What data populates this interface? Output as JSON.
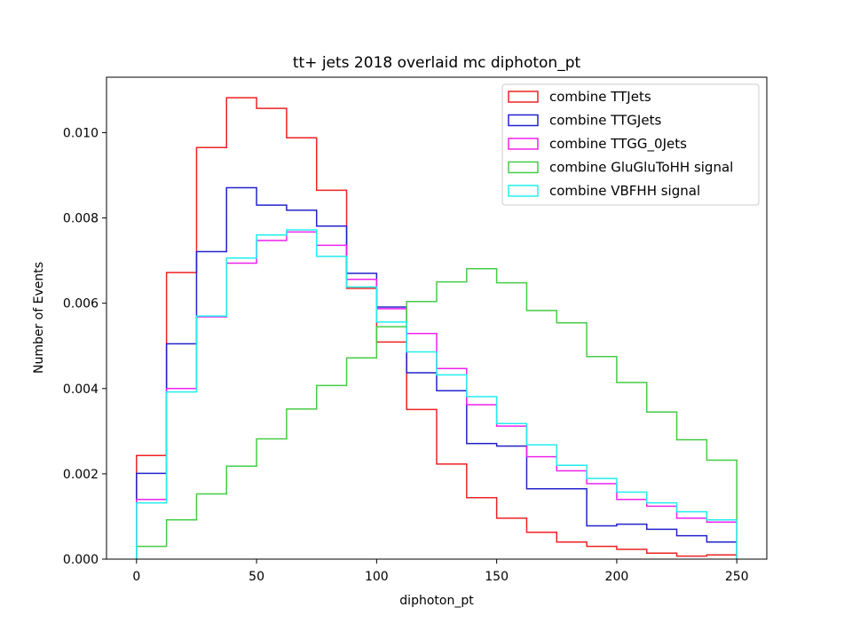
{
  "chart_data": {
    "type": "step-histogram",
    "title": "tt+ jets 2018 overlaid mc diphoton_pt",
    "xlabel": "diphoton_pt",
    "ylabel": "Number of Events",
    "xlim": [
      -12.5,
      262.5
    ],
    "ylim": [
      0,
      0.0113
    ],
    "xticks": [
      0,
      50,
      100,
      150,
      200,
      250
    ],
    "xtick_labels": [
      "0",
      "50",
      "100",
      "150",
      "200",
      "250"
    ],
    "yticks": [
      0,
      0.002,
      0.004,
      0.006,
      0.008,
      0.01
    ],
    "ytick_labels": [
      "0.000",
      "0.002",
      "0.004",
      "0.006",
      "0.008",
      "0.010"
    ],
    "legend_position": "top-right",
    "bin_edges": [
      0,
      12.5,
      25,
      37.5,
      50,
      62.5,
      75,
      87.5,
      100,
      112.5,
      125,
      137.5,
      150,
      162.5,
      175,
      187.5,
      200,
      212.5,
      225,
      237.5,
      250
    ],
    "series": [
      {
        "name": "combine TTJets",
        "color": "#ee2222",
        "values": [
          0.00243,
          0.00672,
          0.00965,
          0.01082,
          0.01057,
          0.00988,
          0.00865,
          0.00635,
          0.00509,
          0.00351,
          0.00223,
          0.00144,
          0.00096,
          0.00063,
          0.0004,
          0.0003,
          0.00023,
          0.00014,
          7e-05,
          0.0001
        ]
      },
      {
        "name": "combine TTGJets",
        "color": "#2222cc",
        "values": [
          0.00201,
          0.00505,
          0.00721,
          0.00871,
          0.0083,
          0.00818,
          0.00781,
          0.0067,
          0.00591,
          0.00437,
          0.00395,
          0.00271,
          0.00265,
          0.00165,
          0.00165,
          0.00078,
          0.00082,
          0.0007,
          0.00055,
          0.0004
        ]
      },
      {
        "name": "combine TTGG_0Jets",
        "color": "#ee22ee",
        "values": [
          0.0014,
          0.004,
          0.00568,
          0.00694,
          0.00747,
          0.00767,
          0.00736,
          0.00656,
          0.00587,
          0.00529,
          0.00447,
          0.00362,
          0.00312,
          0.0024,
          0.00207,
          0.00177,
          0.0014,
          0.00124,
          0.00096,
          0.00087
        ]
      },
      {
        "name": "combine GluGluToHH signal",
        "color": "#44cc44",
        "values": [
          0.0003,
          0.00092,
          0.00153,
          0.00218,
          0.00282,
          0.00352,
          0.00407,
          0.00472,
          0.00545,
          0.00604,
          0.0065,
          0.00681,
          0.00648,
          0.00583,
          0.00554,
          0.00475,
          0.00414,
          0.00345,
          0.0028,
          0.00232
        ]
      },
      {
        "name": "combine VBFHH signal",
        "color": "#22eeee",
        "values": [
          0.00132,
          0.00392,
          0.0057,
          0.00706,
          0.0076,
          0.00772,
          0.0071,
          0.00638,
          0.00556,
          0.00486,
          0.00432,
          0.00381,
          0.00318,
          0.00268,
          0.0022,
          0.00189,
          0.00157,
          0.00132,
          0.00111,
          0.00092
        ]
      }
    ]
  }
}
